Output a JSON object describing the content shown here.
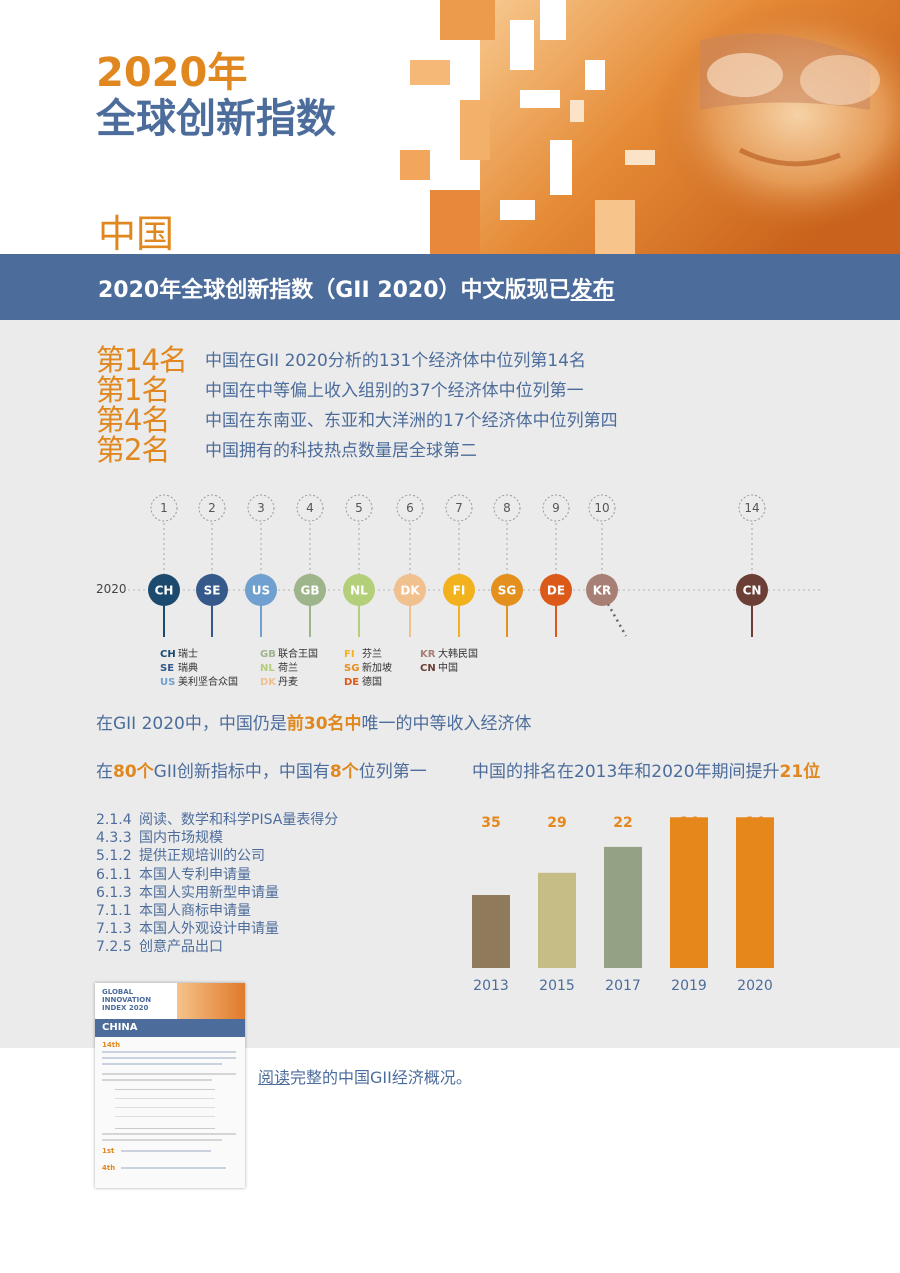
{
  "header": {
    "title_line1": "2020年",
    "title_line2": "全球创新指数",
    "country": "中国"
  },
  "banner": {
    "text_prefix": "2020年全球创新指数（GII 2020）中文版现已",
    "text_link": "发布"
  },
  "rankings": [
    {
      "rank": "第14名",
      "desc": "中国在GII 2020分析的131个经济体中位列第14名"
    },
    {
      "rank": "第1名",
      "desc": "中国在中等偏上收入组别的37个经济体中位列第一"
    },
    {
      "rank": "第4名",
      "desc": "中国在东南亚、东亚和大洋洲的17个经济体中位列第四"
    },
    {
      "rank": "第2名",
      "desc": "中国拥有的科技热点数量居全球第二"
    }
  ],
  "timeline": {
    "year": "2020",
    "items": [
      {
        "num": "1",
        "code": "CH",
        "color": "#1c4a6e"
      },
      {
        "num": "2",
        "code": "SE",
        "color": "#35598a"
      },
      {
        "num": "3",
        "code": "US",
        "color": "#6fa0cf"
      },
      {
        "num": "4",
        "code": "GB",
        "color": "#9eb48a"
      },
      {
        "num": "5",
        "code": "NL",
        "color": "#b4cf7a"
      },
      {
        "num": "6",
        "code": "DK",
        "color": "#f0c08e"
      },
      {
        "num": "7",
        "code": "FI",
        "color": "#f2b21e"
      },
      {
        "num": "8",
        "code": "SG",
        "color": "#e3901f"
      },
      {
        "num": "9",
        "code": "DE",
        "color": "#dc5a19"
      },
      {
        "num": "10",
        "code": "KR",
        "color": "#a87f74"
      },
      {
        "num": "14",
        "code": "CN",
        "color": "#6b3f35"
      }
    ],
    "legend": [
      [
        {
          "code": "CH",
          "name": "瑞士",
          "color": "#1c4a6e"
        },
        {
          "code": "SE",
          "name": "瑞典",
          "color": "#35598a"
        },
        {
          "code": "US",
          "name": "美利坚合众国",
          "color": "#6fa0cf"
        }
      ],
      [
        {
          "code": "GB",
          "name": "联合王国",
          "color": "#9eb48a"
        },
        {
          "code": "NL",
          "name": "荷兰",
          "color": "#b4cf7a"
        },
        {
          "code": "DK",
          "name": "丹麦",
          "color": "#f0c08e"
        }
      ],
      [
        {
          "code": "FI",
          "name": "芬兰",
          "color": "#f2b21e"
        },
        {
          "code": "SG",
          "name": "新加坡",
          "color": "#e3901f"
        },
        {
          "code": "DE",
          "name": "德国",
          "color": "#dc5a19"
        }
      ],
      [
        {
          "code": "KR",
          "name": "大韩民国",
          "color": "#a87f74"
        },
        {
          "code": "CN",
          "name": "中国",
          "color": "#6b3f35"
        }
      ]
    ]
  },
  "statement1": {
    "a": "在GII 2020中，中国仍是",
    "b": "前30名中",
    "c": "唯一的中等收入经济体"
  },
  "indicators_heading": {
    "a": "在",
    "b": "80个",
    "c": "GII创新指标中，中国有",
    "d": "8个",
    "e": "位列第一"
  },
  "indicators": [
    {
      "code": "2.1.4",
      "name": "阅读、数学和科学PISA量表得分"
    },
    {
      "code": "4.3.3",
      "name": "国内市场规模"
    },
    {
      "code": "5.1.2",
      "name": "提供正规培训的公司"
    },
    {
      "code": "6.1.1",
      "name": "本国人专利申请量"
    },
    {
      "code": "6.1.3",
      "name": "本国人实用新型申请量"
    },
    {
      "code": "7.1.1",
      "name": "本国人商标申请量"
    },
    {
      "code": "7.1.3",
      "name": "本国人外观设计申请量"
    },
    {
      "code": "7.2.5",
      "name": "创意产品出口"
    }
  ],
  "chart_heading": {
    "a": "中国的排名在2013年和2020年期间提升",
    "b": "21位"
  },
  "chart_data": {
    "type": "bar",
    "categories": [
      "2013",
      "2015",
      "2017",
      "2019",
      "2020"
    ],
    "values": [
      35,
      29,
      22,
      14,
      14
    ],
    "data_labels": [
      "35",
      "29",
      "22",
      "14",
      "14"
    ],
    "colors": [
      "#8f7a5b",
      "#c6bc85",
      "#95a184",
      "#e6871c",
      "#e6871c"
    ],
    "label_color": "#e6871c",
    "title": "中国的排名在2013年和2020年期间提升21位",
    "xlabel": "",
    "ylabel": ""
  },
  "thumbnail": {
    "title1": "GLOBAL",
    "title2": "INNOVATION",
    "title3": "INDEX 2020",
    "country": "CHINA",
    "rank_a": "14th",
    "rank_b": "1st",
    "rank_c": "4th"
  },
  "footer_link": {
    "a": "阅读",
    "b": "完整的中国GII经济概况。"
  }
}
